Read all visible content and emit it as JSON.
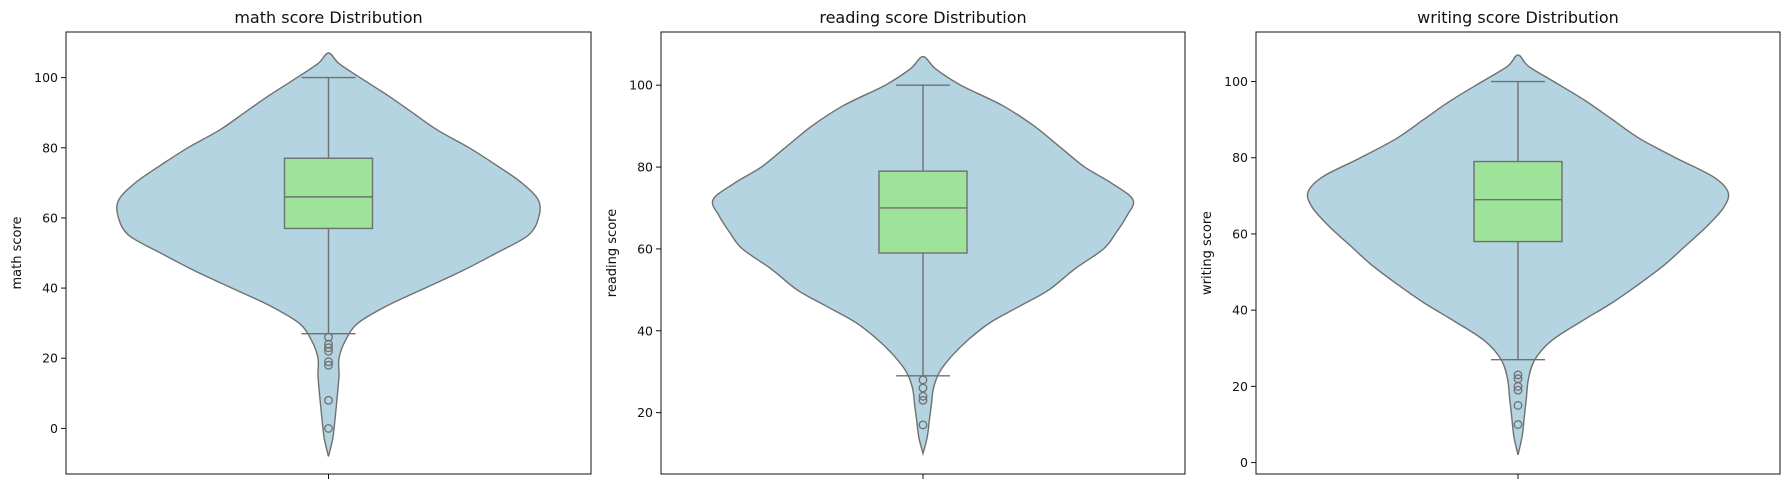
{
  "colors": {
    "violin_fill": "#b3d4e0",
    "violin_edge": "#707070",
    "box_fill": "#9de39a",
    "box_edge": "#707070",
    "outlier": "#707070"
  },
  "chart_data": [
    {
      "type": "violin",
      "title": "math score Distribution",
      "xlabel": "",
      "ylabel": "math score",
      "ylim": [
        -13,
        113
      ],
      "yticks": [
        0,
        20,
        40,
        60,
        80,
        100
      ],
      "box": {
        "whisker_low": 27,
        "q1": 57,
        "median": 66,
        "q3": 77,
        "whisker_high": 100
      },
      "outliers": [
        26,
        24,
        23,
        22,
        19,
        18,
        8,
        0
      ],
      "density_profile": [
        [
          -8,
          0
        ],
        [
          -3,
          0.02
        ],
        [
          2,
          0.03
        ],
        [
          8,
          0.04
        ],
        [
          15,
          0.05
        ],
        [
          20,
          0.05
        ],
        [
          25,
          0.08
        ],
        [
          30,
          0.14
        ],
        [
          35,
          0.28
        ],
        [
          40,
          0.46
        ],
        [
          45,
          0.64
        ],
        [
          50,
          0.8
        ],
        [
          55,
          0.95
        ],
        [
          60,
          1.0
        ],
        [
          65,
          1.0
        ],
        [
          70,
          0.92
        ],
        [
          75,
          0.8
        ],
        [
          80,
          0.67
        ],
        [
          85,
          0.52
        ],
        [
          90,
          0.4
        ],
        [
          95,
          0.28
        ],
        [
          100,
          0.15
        ],
        [
          104,
          0.05
        ],
        [
          107,
          0
        ]
      ]
    },
    {
      "type": "violin",
      "title": "reading score Distribution",
      "xlabel": "",
      "ylabel": "reading score",
      "ylim": [
        5,
        113
      ],
      "yticks": [
        20,
        40,
        60,
        80,
        100
      ],
      "box": {
        "whisker_low": 29,
        "q1": 59,
        "median": 70,
        "q3": 79,
        "whisker_high": 100
      },
      "outliers": [
        28,
        26,
        24,
        23,
        17
      ],
      "density_profile": [
        [
          10,
          0
        ],
        [
          14,
          0.02
        ],
        [
          18,
          0.03
        ],
        [
          22,
          0.04
        ],
        [
          26,
          0.05
        ],
        [
          30,
          0.08
        ],
        [
          34,
          0.14
        ],
        [
          38,
          0.22
        ],
        [
          42,
          0.32
        ],
        [
          46,
          0.46
        ],
        [
          50,
          0.6
        ],
        [
          55,
          0.72
        ],
        [
          60,
          0.86
        ],
        [
          64,
          0.92
        ],
        [
          68,
          0.97
        ],
        [
          72,
          1.0
        ],
        [
          76,
          0.9
        ],
        [
          80,
          0.77
        ],
        [
          85,
          0.65
        ],
        [
          90,
          0.53
        ],
        [
          95,
          0.38
        ],
        [
          100,
          0.18
        ],
        [
          104,
          0.06
        ],
        [
          107,
          0
        ]
      ]
    },
    {
      "type": "violin",
      "title": "writing score Distribution",
      "xlabel": "",
      "ylabel": "writing score",
      "ylim": [
        -3,
        113
      ],
      "yticks": [
        0,
        20,
        40,
        60,
        80,
        100
      ],
      "box": {
        "whisker_low": 27,
        "q1": 58,
        "median": 69,
        "q3": 79,
        "whisker_high": 100
      },
      "outliers": [
        23,
        22,
        20,
        19,
        15,
        10
      ],
      "density_profile": [
        [
          2,
          0
        ],
        [
          7,
          0.02
        ],
        [
          12,
          0.03
        ],
        [
          17,
          0.04
        ],
        [
          22,
          0.05
        ],
        [
          27,
          0.08
        ],
        [
          32,
          0.16
        ],
        [
          37,
          0.3
        ],
        [
          42,
          0.45
        ],
        [
          47,
          0.58
        ],
        [
          52,
          0.7
        ],
        [
          57,
          0.8
        ],
        [
          62,
          0.9
        ],
        [
          67,
          0.98
        ],
        [
          71,
          1.0
        ],
        [
          75,
          0.93
        ],
        [
          80,
          0.75
        ],
        [
          85,
          0.58
        ],
        [
          90,
          0.45
        ],
        [
          95,
          0.32
        ],
        [
          100,
          0.17
        ],
        [
          104,
          0.05
        ],
        [
          107,
          0
        ]
      ]
    }
  ]
}
